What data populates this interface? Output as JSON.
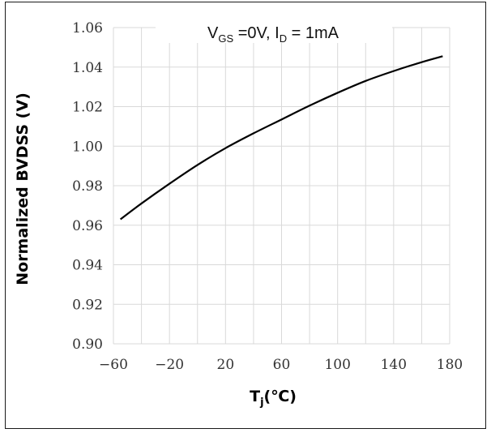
{
  "chart_data": {
    "type": "line",
    "annotation": {
      "v_prefix": "V",
      "v_sub": "GS",
      "v_rest": " =0V, I",
      "i_sub": "D",
      "i_rest": " = 1mA"
    },
    "xlabel": {
      "main": "T",
      "sub": "j",
      "rest": "(℃)"
    },
    "ylabel": "Normalized BVDSS (V)",
    "xlim": [
      -60,
      180
    ],
    "ylim": [
      0.9,
      1.06
    ],
    "x_ticks": [
      "−60",
      "−20",
      "20",
      "60",
      "100",
      "140",
      "180"
    ],
    "x_tick_values": [
      -60,
      -20,
      20,
      60,
      100,
      140,
      180
    ],
    "y_ticks": [
      "0.90",
      "0.92",
      "0.94",
      "0.96",
      "0.98",
      "1.00",
      "1.02",
      "1.04",
      "1.06"
    ],
    "y_tick_values": [
      0.9,
      0.92,
      0.94,
      0.96,
      0.98,
      1.0,
      1.02,
      1.04,
      1.06
    ],
    "grid": true,
    "series": [
      {
        "x": [
          -55,
          -40,
          -20,
          0,
          20,
          40,
          60,
          80,
          100,
          120,
          140,
          160,
          175
        ],
        "values": [
          0.963,
          0.971,
          0.981,
          0.9905,
          0.999,
          1.0065,
          1.0135,
          1.0205,
          1.027,
          1.033,
          1.038,
          1.0425,
          1.0455
        ]
      }
    ],
    "colors": {
      "line": "#000000",
      "grid": "#d9d9d9",
      "text": "#333333"
    }
  }
}
